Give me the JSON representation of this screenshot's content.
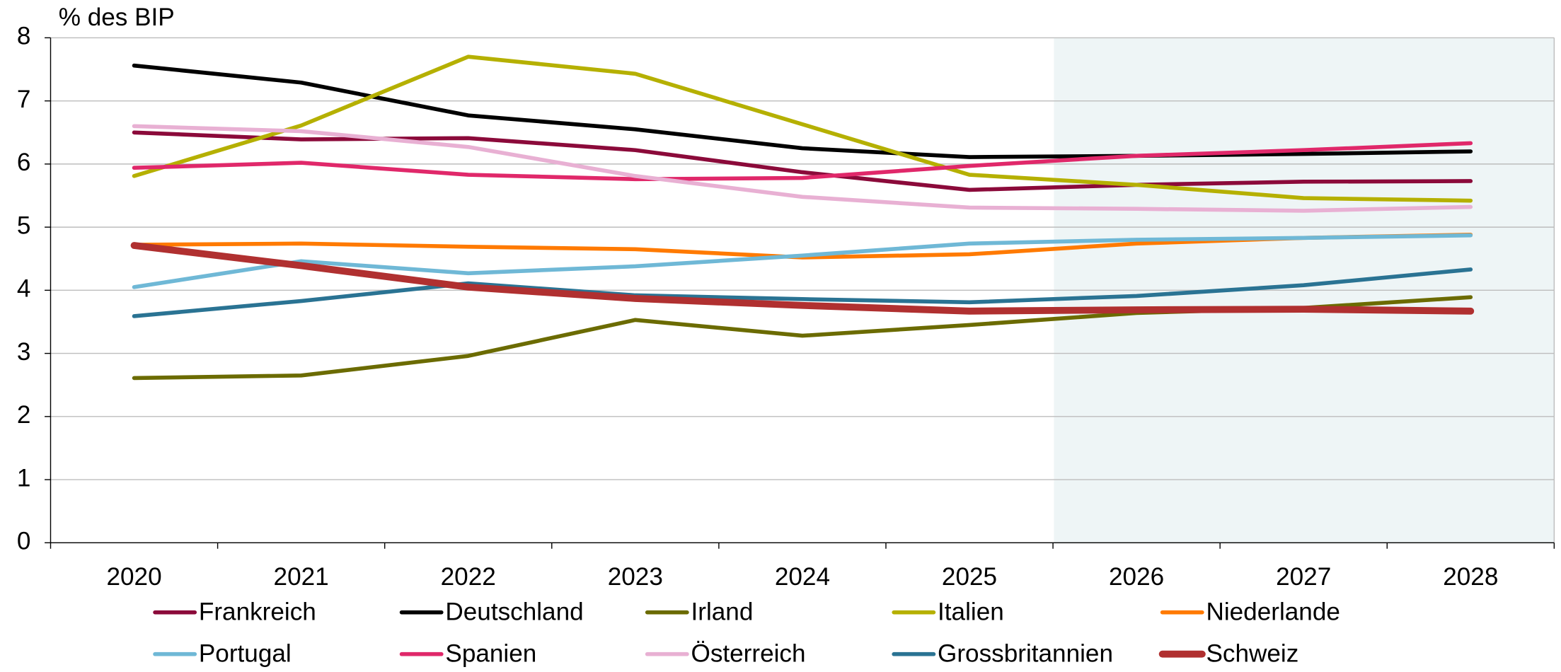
{
  "chart_data": {
    "type": "line",
    "y_label": "% des BIP",
    "categories": [
      "2020",
      "2021",
      "2022",
      "2023",
      "2024",
      "2025",
      "2026",
      "2027",
      "2028"
    ],
    "ylim": [
      0,
      8
    ],
    "yticks": [
      0,
      1,
      2,
      3,
      4,
      5,
      6,
      7,
      8
    ],
    "grid": true,
    "series": [
      {
        "name": "Frankreich",
        "color": "#8b0a3a",
        "values": [
          6.5,
          6.39,
          6.41,
          6.22,
          5.87,
          5.59,
          5.67,
          5.72,
          5.73
        ]
      },
      {
        "name": "Deutschland",
        "color": "#000000",
        "values": [
          7.56,
          7.29,
          6.77,
          6.55,
          6.25,
          6.11,
          6.13,
          6.16,
          6.2
        ]
      },
      {
        "name": "Irland",
        "color": "#6b6b00",
        "values": [
          2.61,
          2.65,
          2.96,
          3.53,
          3.28,
          3.45,
          3.64,
          3.72,
          3.89
        ]
      },
      {
        "name": "Italien",
        "color": "#b5b000",
        "values": [
          5.81,
          6.61,
          7.7,
          7.43,
          6.63,
          5.83,
          5.67,
          5.46,
          5.42
        ]
      },
      {
        "name": "Niederlande",
        "color": "#ff7a00",
        "values": [
          4.72,
          4.74,
          4.69,
          4.65,
          4.52,
          4.57,
          4.74,
          4.83,
          4.88
        ]
      },
      {
        "name": "Portugal",
        "color": "#6fb8d6",
        "values": [
          4.05,
          4.46,
          4.27,
          4.38,
          4.55,
          4.74,
          4.8,
          4.83,
          4.87
        ]
      },
      {
        "name": "Spanien",
        "color": "#e0286a",
        "values": [
          5.94,
          6.02,
          5.83,
          5.76,
          5.78,
          5.97,
          6.13,
          6.22,
          6.33
        ]
      },
      {
        "name": "Österreich",
        "color": "#e8b0d3",
        "values": [
          6.6,
          6.52,
          6.27,
          5.81,
          5.48,
          5.31,
          5.29,
          5.26,
          5.32
        ]
      },
      {
        "name": "Grossbritannien",
        "color": "#2a7393",
        "values": [
          3.59,
          3.83,
          4.11,
          3.92,
          3.86,
          3.81,
          3.91,
          4.08,
          4.33
        ]
      },
      {
        "name": "Schweiz",
        "color": "#b03030",
        "values": [
          4.71,
          4.39,
          4.05,
          3.87,
          3.76,
          3.67,
          3.69,
          3.7,
          3.67
        ]
      }
    ]
  }
}
